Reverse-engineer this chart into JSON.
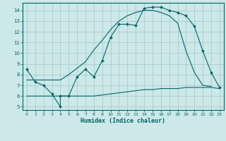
{
  "xlabel": "Humidex (Indice chaleur)",
  "bg_color": "#cce8e8",
  "grid_color": "#aacccc",
  "line_color": "#006666",
  "xlim": [
    -0.5,
    23.5
  ],
  "ylim": [
    4.7,
    14.7
  ],
  "xticks": [
    0,
    1,
    2,
    3,
    4,
    5,
    6,
    7,
    8,
    9,
    10,
    11,
    12,
    13,
    14,
    15,
    16,
    17,
    18,
    19,
    20,
    21,
    22,
    23
  ],
  "yticks": [
    5,
    6,
    7,
    8,
    9,
    10,
    11,
    12,
    13,
    14
  ],
  "line_flat": {
    "x": [
      0,
      1,
      2,
      3,
      4,
      5,
      6,
      7,
      8,
      9,
      10,
      11,
      12,
      13,
      14,
      15,
      16,
      17,
      18,
      19,
      20,
      21,
      22,
      23
    ],
    "y": [
      6.0,
      6.0,
      6.0,
      6.0,
      6.0,
      6.0,
      6.0,
      6.0,
      6.0,
      6.1,
      6.2,
      6.3,
      6.4,
      6.5,
      6.6,
      6.6,
      6.7,
      6.7,
      6.7,
      6.8,
      6.8,
      6.8,
      6.8,
      6.7
    ]
  },
  "line_diag": {
    "x": [
      0,
      2,
      3,
      4,
      5,
      7,
      8,
      9,
      10,
      11,
      12,
      13,
      14,
      15,
      16,
      17,
      18,
      19,
      20,
      21,
      22
    ],
    "y": [
      7.5,
      7.5,
      7.5,
      7.5,
      8.0,
      9.2,
      10.3,
      11.2,
      12.2,
      13.0,
      13.5,
      13.8,
      14.0,
      14.0,
      13.8,
      13.5,
      12.8,
      10.2,
      8.2,
      7.0,
      6.9
    ]
  },
  "line_wiggly": {
    "x": [
      0,
      1,
      2,
      3,
      4,
      4,
      5,
      6,
      7,
      8,
      9,
      10,
      11,
      12,
      13,
      14,
      15,
      16,
      17,
      18,
      19,
      20,
      21,
      22,
      23
    ],
    "y": [
      8.5,
      7.3,
      7.0,
      6.2,
      5.0,
      6.0,
      6.0,
      7.8,
      8.5,
      7.8,
      9.3,
      11.5,
      12.7,
      12.7,
      12.6,
      14.2,
      14.3,
      14.3,
      14.0,
      13.8,
      13.5,
      12.5,
      10.2,
      8.2,
      6.8
    ]
  }
}
